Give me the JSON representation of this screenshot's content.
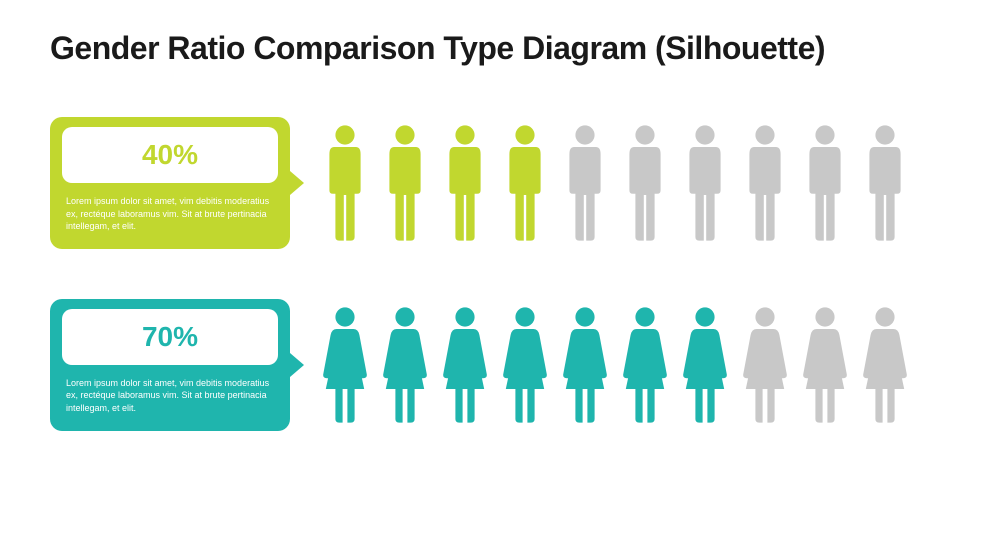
{
  "title": "Gender Ratio Comparison Type Diagram (Silhouette)",
  "inactive_color": "#c8c8c8",
  "rows": [
    {
      "percent_label": "40%",
      "description": "Lorem ipsum dolor sit amet, vim debitis moderatius ex, rectéque laboramus vim. Sit at brute pertinacia intellegam, et elit.",
      "color": "#c1d72f",
      "filled_count": 4,
      "total_count": 10,
      "silhouette": "male"
    },
    {
      "percent_label": "70%",
      "description": "Lorem ipsum dolor sit amet, vim debitis moderatius ex, rectéque laboramus vim. Sit at brute pertinacia intellegam, et elit.",
      "color": "#1fb5ad",
      "filled_count": 7,
      "total_count": 10,
      "silhouette": "female"
    }
  ]
}
